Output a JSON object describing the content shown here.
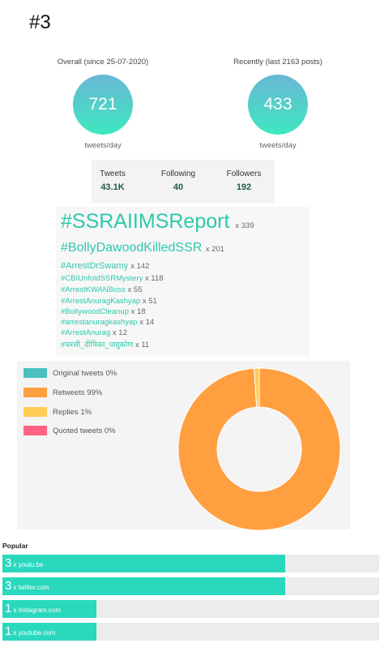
{
  "page": {
    "title": "#3"
  },
  "overall": {
    "label": "Overall (since 25-07-2020)",
    "value": "721",
    "unit": "tweets/day"
  },
  "recent": {
    "label": "Recently (last 2163 posts)",
    "value": "433",
    "unit": "tweets/day"
  },
  "counts": [
    {
      "label": "Tweets",
      "value": "43.1K"
    },
    {
      "label": "Following",
      "value": "40"
    },
    {
      "label": "Followers",
      "value": "192"
    }
  ],
  "hashtags": [
    {
      "tag": "#SSRAIIMSReport",
      "count": "x 339"
    },
    {
      "tag": "#BollyDawoodKilledSSR",
      "count": "x 201"
    },
    {
      "tag": "#ArrestDrSwamy",
      "count": "x 142"
    },
    {
      "tag": "#CBIUnfoldSSRMystery",
      "count": "x 118"
    },
    {
      "tag": "#ArrestKWANBoss",
      "count": "x 55"
    },
    {
      "tag": "#ArrestAnuragKashyap",
      "count": "x 51"
    },
    {
      "tag": "#BollywoodCleanup",
      "count": "x 18"
    },
    {
      "tag": "#arrestanuragkashyap",
      "count": "x 14"
    },
    {
      "tag": "#ArrestAnurag",
      "count": "x 12"
    },
    {
      "tag": "#चरसी_दीपिका_पादुकोण",
      "count": "x 11"
    }
  ],
  "chart_data": {
    "type": "pie",
    "variant": "donut",
    "legend_position": "left",
    "categories": [
      "Original tweets 0%",
      "Retweets 99%",
      "Replies 1%",
      "Quoted tweets 0%"
    ],
    "values": [
      0,
      99,
      1,
      0
    ],
    "colors": [
      "#4bc0c0",
      "#ff9f40",
      "#ffcd56",
      "#ff6384"
    ]
  },
  "popular": {
    "label": "Popular",
    "items": [
      {
        "count": "3",
        "site": "x youtu.be",
        "fraction": 1.0
      },
      {
        "count": "3",
        "site": "x twitter.com",
        "fraction": 1.0
      },
      {
        "count": "1",
        "site": "x instagram.com",
        "fraction": 0.333
      },
      {
        "count": "1",
        "site": "x youtube.com",
        "fraction": 0.333
      }
    ],
    "bar_color": "#2ad8be",
    "track_color": "#ececec"
  }
}
